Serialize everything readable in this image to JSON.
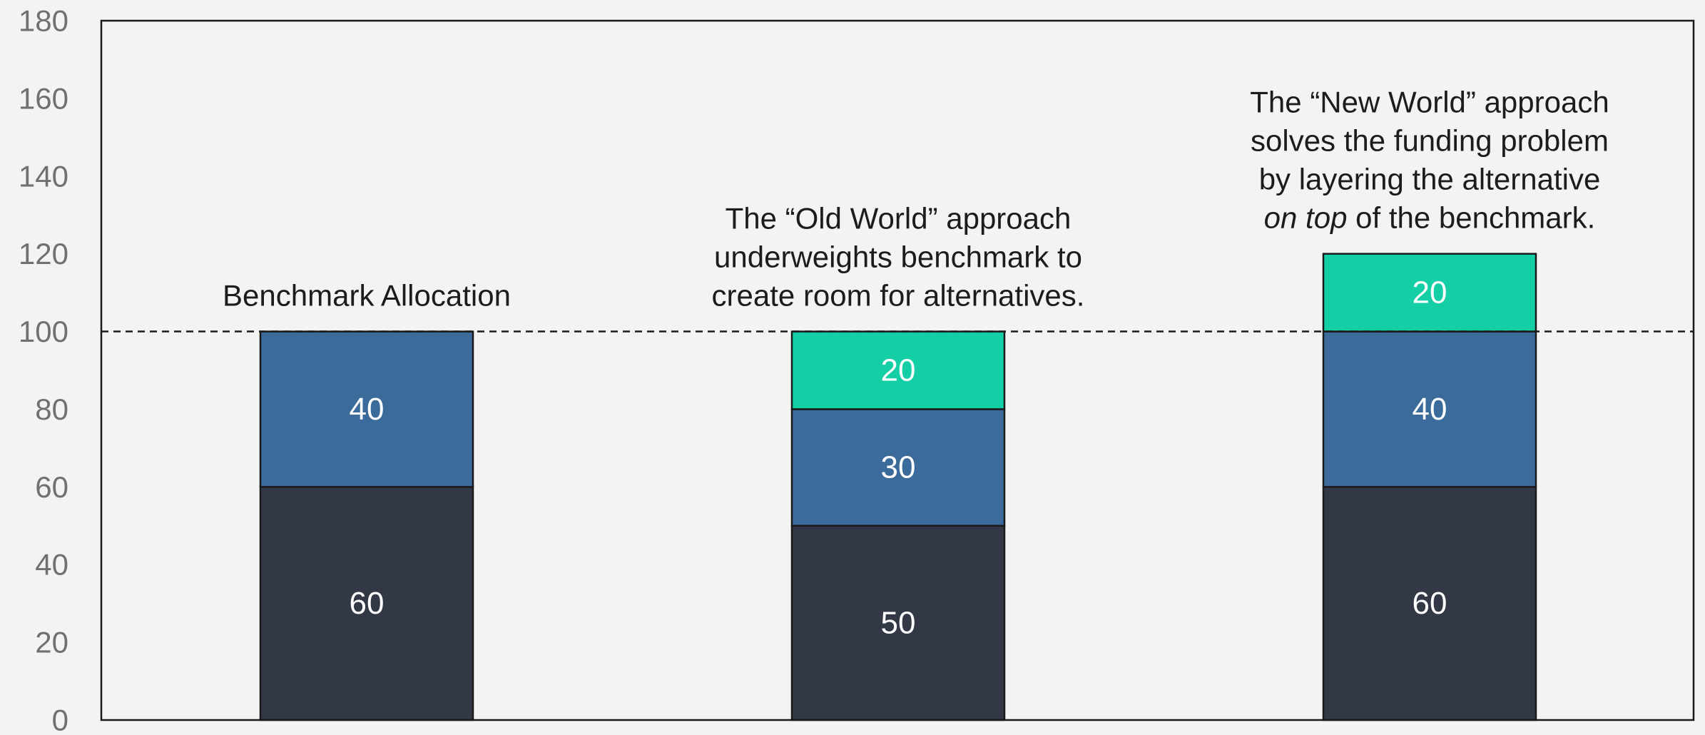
{
  "chart_data": {
    "type": "bar",
    "stacked": true,
    "categories": [
      "",
      "",
      ""
    ],
    "series": [
      {
        "values": [
          60,
          50,
          60
        ],
        "color": "#323846"
      },
      {
        "values": [
          40,
          30,
          40
        ],
        "color": "#3b6b9b"
      },
      {
        "values": [
          0,
          20,
          20
        ],
        "color": "#14cfa5"
      }
    ],
    "ylim": [
      0,
      180
    ],
    "yticks": [
      0,
      20,
      40,
      60,
      80,
      100,
      120,
      140,
      160,
      180
    ],
    "reference_line": {
      "value": 100,
      "style": "dashed"
    },
    "grid": false,
    "legend": "none",
    "annotations": [
      {
        "bar": 0,
        "lines": [
          [
            {
              "text": "Benchmark Allocation"
            }
          ]
        ]
      },
      {
        "bar": 1,
        "lines": [
          [
            {
              "text": "The “Old World” approach"
            }
          ],
          [
            {
              "text": "underweights benchmark to"
            }
          ],
          [
            {
              "text": "create room for alternatives."
            }
          ]
        ]
      },
      {
        "bar": 2,
        "lines": [
          [
            {
              "text": "The “New World” approach"
            }
          ],
          [
            {
              "text": "solves the funding problem"
            }
          ],
          [
            {
              "text": "by layering the alternative"
            }
          ],
          [
            {
              "text": "on top",
              "italic": true
            },
            {
              "text": " of the benchmark."
            }
          ]
        ]
      }
    ]
  }
}
